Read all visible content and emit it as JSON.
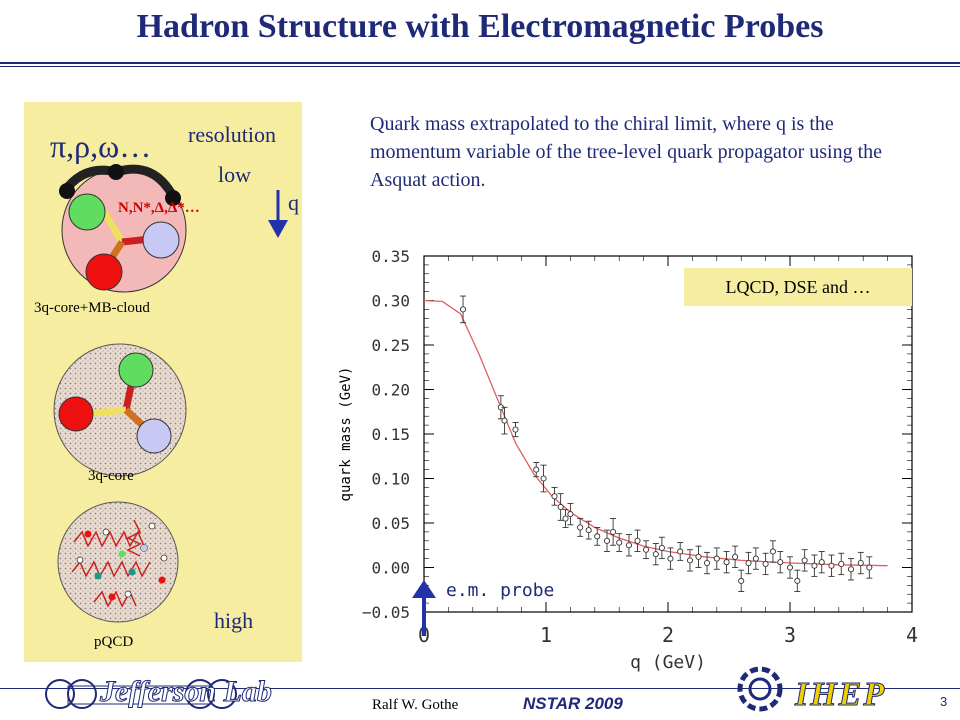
{
  "title": "Hadron Structure with Electromagnetic Probes",
  "left_panel": {
    "resolution": "resolution",
    "low": "low",
    "high": "high",
    "q": "q",
    "mesons": "π,ρ,ω…",
    "baryons": "N,N*,Δ,Δ*…",
    "cloud_label": "3q-core+MB-cloud",
    "core_label": "3q-core",
    "pqcd_label": "pQCD"
  },
  "description": "Quark mass extrapolated to the chiral limit, where q is the momentum variable of the tree-level quark propagator using the Asquat action.",
  "legend_box": "LQCD, DSE and …",
  "probe_label": "e.m. probe",
  "footer": {
    "author": "Ralf  W. Gothe",
    "conference": "NSTAR 2009",
    "page": "3",
    "jlab_logo_text": "Jefferson Lab",
    "ihep_logo_text": "IHEP"
  },
  "colors": {
    "title_blue": "#1e2a78",
    "panel_yellow": "#f6eda0",
    "curve_red": "#e06060"
  },
  "chart_data": {
    "type": "scatter",
    "xlabel": "q (GeV)",
    "ylabel": "quark mass (GeV)",
    "xlim": [
      0,
      4
    ],
    "ylim": [
      -0.05,
      0.35
    ],
    "xticks": [
      "0",
      "1",
      "2",
      "3",
      "4"
    ],
    "yticks": [
      "−0.05",
      "0.00",
      "0.05",
      "0.10",
      "0.15",
      "0.20",
      "0.25",
      "0.30",
      "0.35"
    ],
    "points": [
      {
        "x": 0.32,
        "y": 0.29,
        "err": 0.015
      },
      {
        "x": 0.63,
        "y": 0.18,
        "err": 0.013
      },
      {
        "x": 0.66,
        "y": 0.165,
        "err": 0.015
      },
      {
        "x": 0.75,
        "y": 0.155,
        "err": 0.008
      },
      {
        "x": 0.92,
        "y": 0.11,
        "err": 0.008
      },
      {
        "x": 0.98,
        "y": 0.1,
        "err": 0.015
      },
      {
        "x": 1.07,
        "y": 0.08,
        "err": 0.01
      },
      {
        "x": 1.12,
        "y": 0.068,
        "err": 0.015
      },
      {
        "x": 1.16,
        "y": 0.055,
        "err": 0.01
      },
      {
        "x": 1.2,
        "y": 0.06,
        "err": 0.012
      },
      {
        "x": 1.28,
        "y": 0.045,
        "err": 0.01
      },
      {
        "x": 1.35,
        "y": 0.042,
        "err": 0.01
      },
      {
        "x": 1.42,
        "y": 0.035,
        "err": 0.01
      },
      {
        "x": 1.5,
        "y": 0.03,
        "err": 0.012
      },
      {
        "x": 1.55,
        "y": 0.04,
        "err": 0.015
      },
      {
        "x": 1.6,
        "y": 0.028,
        "err": 0.01
      },
      {
        "x": 1.68,
        "y": 0.025,
        "err": 0.012
      },
      {
        "x": 1.75,
        "y": 0.03,
        "err": 0.012
      },
      {
        "x": 1.82,
        "y": 0.02,
        "err": 0.01
      },
      {
        "x": 1.9,
        "y": 0.015,
        "err": 0.012
      },
      {
        "x": 1.95,
        "y": 0.022,
        "err": 0.012
      },
      {
        "x": 2.02,
        "y": 0.01,
        "err": 0.012
      },
      {
        "x": 2.1,
        "y": 0.018,
        "err": 0.01
      },
      {
        "x": 2.18,
        "y": 0.008,
        "err": 0.012
      },
      {
        "x": 2.25,
        "y": 0.012,
        "err": 0.012
      },
      {
        "x": 2.32,
        "y": 0.005,
        "err": 0.012
      },
      {
        "x": 2.4,
        "y": 0.01,
        "err": 0.012
      },
      {
        "x": 2.48,
        "y": 0.006,
        "err": 0.012
      },
      {
        "x": 2.55,
        "y": 0.012,
        "err": 0.012
      },
      {
        "x": 2.6,
        "y": -0.015,
        "err": 0.012
      },
      {
        "x": 2.66,
        "y": 0.005,
        "err": 0.012
      },
      {
        "x": 2.72,
        "y": 0.01,
        "err": 0.012
      },
      {
        "x": 2.8,
        "y": 0.004,
        "err": 0.012
      },
      {
        "x": 2.86,
        "y": 0.018,
        "err": 0.012
      },
      {
        "x": 2.92,
        "y": 0.006,
        "err": 0.012
      },
      {
        "x": 3.0,
        "y": 0.0,
        "err": 0.012
      },
      {
        "x": 3.06,
        "y": -0.015,
        "err": 0.012
      },
      {
        "x": 3.12,
        "y": 0.008,
        "err": 0.012
      },
      {
        "x": 3.2,
        "y": 0.002,
        "err": 0.012
      },
      {
        "x": 3.26,
        "y": 0.006,
        "err": 0.012
      },
      {
        "x": 3.34,
        "y": 0.002,
        "err": 0.012
      },
      {
        "x": 3.42,
        "y": 0.004,
        "err": 0.012
      },
      {
        "x": 3.5,
        "y": -0.002,
        "err": 0.012
      },
      {
        "x": 3.58,
        "y": 0.005,
        "err": 0.012
      },
      {
        "x": 3.65,
        "y": 0.0,
        "err": 0.012
      }
    ],
    "fit_curve": [
      {
        "x": 0.0,
        "y": 0.3
      },
      {
        "x": 0.15,
        "y": 0.299
      },
      {
        "x": 0.3,
        "y": 0.285
      },
      {
        "x": 0.45,
        "y": 0.24
      },
      {
        "x": 0.6,
        "y": 0.19
      },
      {
        "x": 0.75,
        "y": 0.14
      },
      {
        "x": 0.9,
        "y": 0.105
      },
      {
        "x": 1.05,
        "y": 0.08
      },
      {
        "x": 1.2,
        "y": 0.062
      },
      {
        "x": 1.4,
        "y": 0.045
      },
      {
        "x": 1.6,
        "y": 0.033
      },
      {
        "x": 1.8,
        "y": 0.024
      },
      {
        "x": 2.0,
        "y": 0.018
      },
      {
        "x": 2.3,
        "y": 0.012
      },
      {
        "x": 2.6,
        "y": 0.008
      },
      {
        "x": 3.0,
        "y": 0.005
      },
      {
        "x": 3.4,
        "y": 0.003
      },
      {
        "x": 3.8,
        "y": 0.002
      }
    ]
  }
}
